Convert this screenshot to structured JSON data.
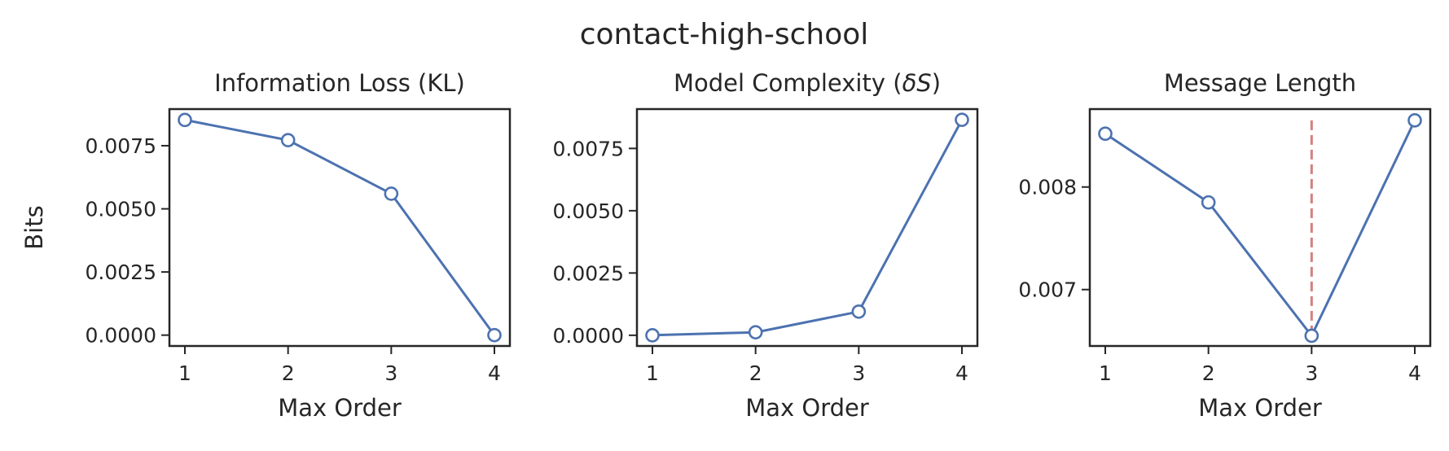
{
  "suptitle": "contact-high-school",
  "chart_data": [
    {
      "type": "line",
      "title": "Information Loss (KL)",
      "xlabel": "Max Order",
      "ylabel": "Bits",
      "x": [
        1,
        2,
        3,
        4
      ],
      "x_ticks": [
        "1",
        "2",
        "3",
        "4"
      ],
      "y": [
        0.00852,
        0.00772,
        0.0056,
        0.0
      ],
      "y_ticks": [
        0.0,
        0.0025,
        0.005,
        0.0075
      ],
      "y_tick_labels": [
        "0.0000",
        "0.0025",
        "0.0050",
        "0.0075"
      ],
      "ylim": [
        -0.00043,
        0.00895
      ],
      "xlim": [
        0.85,
        4.15
      ],
      "line_color": "#4c72b0"
    },
    {
      "type": "line",
      "title": "Model Complexity (δS)",
      "title_parts": [
        "Model Complexity (",
        "δS",
        ")"
      ],
      "xlabel": "Max Order",
      "ylabel": "",
      "x": [
        1,
        2,
        3,
        4
      ],
      "x_ticks": [
        "1",
        "2",
        "3",
        "4"
      ],
      "y": [
        0.0,
        0.00012,
        0.00095,
        0.00865
      ],
      "y_ticks": [
        0.0,
        0.0025,
        0.005,
        0.0075
      ],
      "y_tick_labels": [
        "0.0000",
        "0.0025",
        "0.0050",
        "0.0075"
      ],
      "ylim": [
        -0.00043,
        0.00908
      ],
      "xlim": [
        0.85,
        4.15
      ],
      "line_color": "#4c72b0"
    },
    {
      "type": "line",
      "title": "Message Length",
      "xlabel": "Max Order",
      "ylabel": "",
      "x": [
        1,
        2,
        3,
        4
      ],
      "x_ticks": [
        "1",
        "2",
        "3",
        "4"
      ],
      "y": [
        0.00852,
        0.00785,
        0.00655,
        0.00865
      ],
      "y_ticks": [
        0.007,
        0.008
      ],
      "y_tick_labels": [
        "0.007",
        "0.008"
      ],
      "ylim": [
        0.00645,
        0.00876
      ],
      "xlim": [
        0.85,
        4.15
      ],
      "line_color": "#4c72b0",
      "vline": {
        "x": 3,
        "y_range": [
          0.00655,
          0.00865
        ],
        "color": "#d47f7f",
        "style": "dashed"
      }
    }
  ]
}
